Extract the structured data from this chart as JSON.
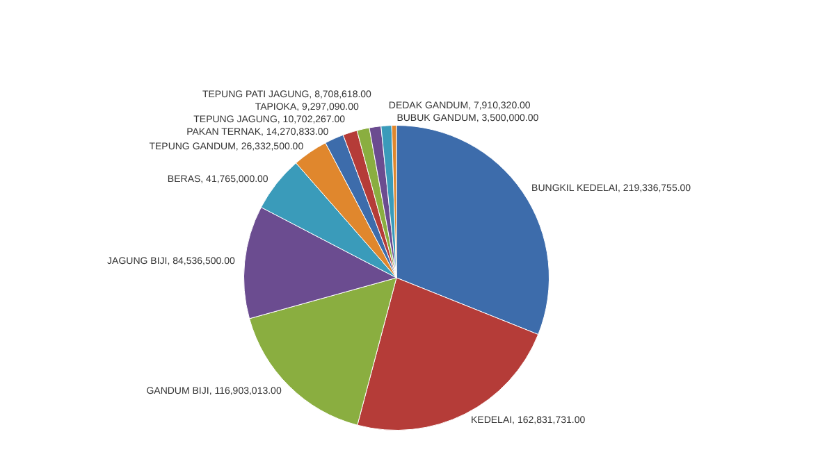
{
  "chart_data": {
    "type": "pie",
    "categories": [
      "BUNGKIL KEDELAI",
      "KEDELAI",
      "GANDUM BIJI",
      "JAGUNG BIJI",
      "BERAS",
      "TEPUNG GANDUM",
      "PAKAN TERNAK",
      "TEPUNG JAGUNG",
      "TAPIOKA",
      "TEPUNG PATI JAGUNG",
      "DEDAK GANDUM",
      "BUBUK GANDUM"
    ],
    "values": [
      219336755,
      162831731,
      116903013,
      84536500,
      41765000,
      26332500,
      14270833,
      10702267,
      9297090,
      8708618,
      7910320,
      3500000
    ],
    "colors": [
      "#3d6cab",
      "#b53c38",
      "#8aae40",
      "#6b4c90",
      "#3a9bba",
      "#e0872d",
      "#3d6cab",
      "#b53c38",
      "#8aae40",
      "#6b4c90",
      "#3a9bba",
      "#e0872d"
    ],
    "value_labels": [
      "219,336,755.00",
      "162,831,731.00",
      "116,903,013.00",
      "84,536,500.00",
      "41,765,000.00",
      "26,332,500.00",
      "14,270,833.00",
      "10,702,267.00",
      "9,297,090.00",
      "8,708,618.00",
      "7,910,320.00",
      "3,500,000.00"
    ]
  }
}
